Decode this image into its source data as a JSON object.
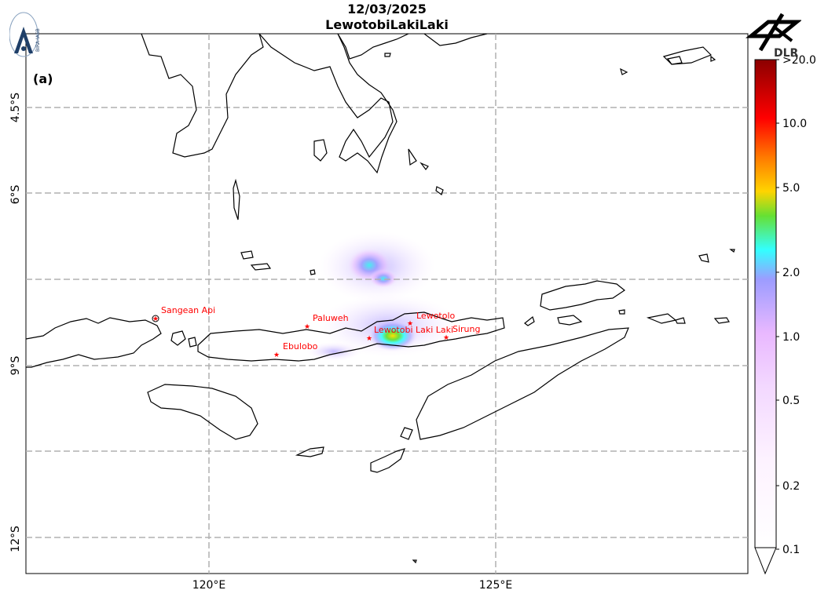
{
  "header": {
    "date": "12/03/2025",
    "volcano": "LewotobiLakiLaki"
  },
  "panel_label": "(a)",
  "logos": {
    "left": {
      "icon": "bira-iasb-logo",
      "text": "BIRA-IASB"
    },
    "right": {
      "icon": "dlr-logo",
      "text": "DLR"
    }
  },
  "axes": {
    "lon_ticks": [
      "120°E",
      "125°E"
    ],
    "lat_ticks": [
      "4.5°S",
      "6°S",
      "9°S",
      "12°S"
    ],
    "grid": true,
    "grid_style": "dashed gray"
  },
  "volcanoes": [
    {
      "name": "Sangean Api",
      "lon": 119.07,
      "lat": -8.2
    },
    {
      "name": "Paluweh",
      "lon": 121.71,
      "lat": -8.32
    },
    {
      "name": "Ebulobo",
      "lon": 121.18,
      "lat": -8.81
    },
    {
      "name": "Lewotolo",
      "lon": 123.51,
      "lat": -8.27
    },
    {
      "name": "Lewotobi Laki Laki",
      "lon": 122.78,
      "lat": -8.53
    },
    {
      "name": "Sirung",
      "lon": 124.13,
      "lat": -8.51
    }
  ],
  "colorbar": {
    "scale": "log",
    "ticks": [
      "0.1",
      "0.2",
      "0.5",
      "1.0",
      "2.0",
      "5.0",
      "10.0",
      ">20.0"
    ],
    "colors": [
      "#ffffff",
      "#fbe9ff",
      "#e9b8ff",
      "#9c9cff",
      "#33ffff",
      "#66e033",
      "#ffd400",
      "#ff7a00",
      "#ff0000",
      "#8b0000"
    ]
  }
}
